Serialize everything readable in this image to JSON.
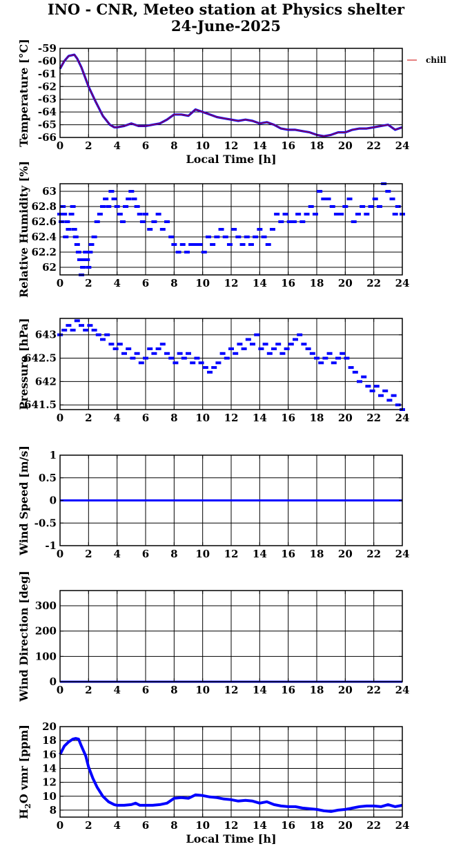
{
  "header": {
    "title_line1": "INO - CNR, Meteo station at Physics shelter",
    "title_line2": "24-June-2025"
  },
  "colors": {
    "series": "#0000ff",
    "legend_line": "#cc0000",
    "grid": "#000000"
  },
  "chart_data": [
    {
      "type": "line",
      "ylabel": "Temperature [°C]",
      "xlabel": "Local Time [h]",
      "xlim": [
        0,
        24
      ],
      "xticks": [
        0,
        2,
        4,
        6,
        8,
        10,
        12,
        14,
        16,
        18,
        20,
        22,
        24
      ],
      "ylim": [
        -66,
        -59
      ],
      "yticks": [
        -66,
        -65,
        -64,
        -63,
        -62,
        -61,
        -60,
        -59
      ],
      "grid": true,
      "legend": {
        "label": "chill",
        "placement": "right"
      },
      "series": [
        {
          "name": "chill",
          "x": [
            0,
            0.3,
            0.6,
            1.0,
            1.2,
            1.5,
            2.0,
            2.5,
            3.0,
            3.5,
            3.8,
            4.0,
            4.5,
            5.0,
            5.5,
            6.0,
            6.5,
            7.0,
            7.5,
            8.0,
            8.5,
            9.0,
            9.5,
            10.0,
            10.5,
            11.0,
            11.5,
            12.0,
            12.5,
            13.0,
            13.5,
            14.0,
            14.5,
            15.0,
            15.5,
            16.0,
            16.5,
            17.0,
            17.5,
            18.0,
            18.5,
            19.0,
            19.5,
            20.0,
            20.5,
            21.0,
            21.5,
            22.0,
            22.5,
            23.0,
            23.5,
            24.0
          ],
          "y": [
            -60.6,
            -60.0,
            -59.6,
            -59.5,
            -59.8,
            -60.5,
            -62.0,
            -63.2,
            -64.3,
            -65.0,
            -65.2,
            -65.2,
            -65.1,
            -64.9,
            -65.1,
            -65.1,
            -65.0,
            -64.9,
            -64.6,
            -64.2,
            -64.2,
            -64.3,
            -63.8,
            -64.0,
            -64.2,
            -64.4,
            -64.5,
            -64.6,
            -64.7,
            -64.6,
            -64.7,
            -64.9,
            -64.8,
            -65.0,
            -65.3,
            -65.4,
            -65.4,
            -65.5,
            -65.6,
            -65.8,
            -65.9,
            -65.8,
            -65.6,
            -65.6,
            -65.4,
            -65.3,
            -65.3,
            -65.2,
            -65.1,
            -65.0,
            -65.4,
            -65.2
          ]
        }
      ]
    },
    {
      "type": "scatter",
      "ylabel": "Relative Humidity [%]",
      "xlim": [
        0,
        24
      ],
      "xticks": [
        0,
        2,
        4,
        6,
        8,
        10,
        12,
        14,
        16,
        18,
        20,
        22,
        24
      ],
      "ylim": [
        61.9,
        63.1
      ],
      "yticks": [
        62,
        62.2,
        62.4,
        62.6,
        62.8,
        63
      ],
      "grid": true,
      "series": [
        {
          "x": [
            0.0,
            0.1,
            0.2,
            0.3,
            0.4,
            0.5,
            0.6,
            0.8,
            0.9,
            1.0,
            1.1,
            1.2,
            1.3,
            1.4,
            1.5,
            1.6,
            1.7,
            1.8,
            1.9,
            2.0,
            2.1,
            2.2,
            2.4,
            2.6,
            2.8,
            3.0,
            3.2,
            3.4,
            3.6,
            3.8,
            4.0,
            4.2,
            4.4,
            4.6,
            4.8,
            5.0,
            5.2,
            5.4,
            5.6,
            5.8,
            6.0,
            6.3,
            6.6,
            6.9,
            7.2,
            7.5,
            7.8,
            8.0,
            8.3,
            8.6,
            8.9,
            9.2,
            9.5,
            9.8,
            10.1,
            10.4,
            10.7,
            11.0,
            11.3,
            11.6,
            11.9,
            12.2,
            12.5,
            12.8,
            13.1,
            13.4,
            13.7,
            14.0,
            14.3,
            14.6,
            14.9,
            15.2,
            15.5,
            15.8,
            16.1,
            16.4,
            16.7,
            17.0,
            17.3,
            17.6,
            17.9,
            18.2,
            18.5,
            18.8,
            19.1,
            19.4,
            19.7,
            20.0,
            20.3,
            20.6,
            20.9,
            21.2,
            21.5,
            21.8,
            22.1,
            22.4,
            22.7,
            23.0,
            23.3,
            23.5,
            23.7,
            24.0
          ],
          "y": [
            62.7,
            62.6,
            62.8,
            62.7,
            62.4,
            62.6,
            62.5,
            62.7,
            62.8,
            62.5,
            62.4,
            62.3,
            62.2,
            62.1,
            61.9,
            62.0,
            62.1,
            62.2,
            62.1,
            62.0,
            62.2,
            62.3,
            62.4,
            62.6,
            62.7,
            62.8,
            62.9,
            62.8,
            63.0,
            62.9,
            62.8,
            62.7,
            62.6,
            62.8,
            62.9,
            63.0,
            62.9,
            62.8,
            62.7,
            62.6,
            62.7,
            62.5,
            62.6,
            62.7,
            62.5,
            62.6,
            62.4,
            62.3,
            62.2,
            62.3,
            62.2,
            62.3,
            62.3,
            62.3,
            62.2,
            62.4,
            62.3,
            62.4,
            62.5,
            62.4,
            62.3,
            62.5,
            62.4,
            62.3,
            62.4,
            62.3,
            62.4,
            62.5,
            62.4,
            62.3,
            62.5,
            62.7,
            62.6,
            62.7,
            62.6,
            62.6,
            62.7,
            62.6,
            62.7,
            62.8,
            62.7,
            63.0,
            62.9,
            62.9,
            62.8,
            62.7,
            62.7,
            62.8,
            62.9,
            62.6,
            62.7,
            62.8,
            62.7,
            62.8,
            62.9,
            62.8,
            63.1,
            63.0,
            62.9,
            62.7,
            62.8,
            62.7
          ]
        }
      ]
    },
    {
      "type": "scatter",
      "ylabel": "Pressure [hPa]",
      "xlim": [
        0,
        24
      ],
      "xticks": [
        0,
        2,
        4,
        6,
        8,
        10,
        12,
        14,
        16,
        18,
        20,
        22,
        24
      ],
      "ylim": [
        641.4,
        643.35
      ],
      "yticks": [
        641.5,
        642,
        642.5,
        643
      ],
      "grid": true,
      "series": [
        {
          "x": [
            0.0,
            0.3,
            0.6,
            0.9,
            1.2,
            1.5,
            1.8,
            2.1,
            2.4,
            2.7,
            3.0,
            3.3,
            3.6,
            3.9,
            4.2,
            4.5,
            4.8,
            5.1,
            5.4,
            5.7,
            6.0,
            6.3,
            6.6,
            6.9,
            7.2,
            7.5,
            7.8,
            8.1,
            8.4,
            8.7,
            9.0,
            9.3,
            9.6,
            9.9,
            10.2,
            10.5,
            10.8,
            11.1,
            11.4,
            11.7,
            12.0,
            12.3,
            12.6,
            12.9,
            13.2,
            13.5,
            13.8,
            14.1,
            14.4,
            14.7,
            15.0,
            15.3,
            15.6,
            15.9,
            16.2,
            16.5,
            16.8,
            17.1,
            17.4,
            17.7,
            18.0,
            18.3,
            18.6,
            18.9,
            19.2,
            19.5,
            19.8,
            20.1,
            20.4,
            20.7,
            21.0,
            21.3,
            21.6,
            21.9,
            22.2,
            22.5,
            22.8,
            23.1,
            23.4,
            23.7,
            24.0
          ],
          "y": [
            643.0,
            643.1,
            643.2,
            643.1,
            643.3,
            643.2,
            643.1,
            643.2,
            643.1,
            643.0,
            642.9,
            643.0,
            642.8,
            642.7,
            642.8,
            642.6,
            642.7,
            642.5,
            642.6,
            642.4,
            642.5,
            642.7,
            642.6,
            642.7,
            642.8,
            642.6,
            642.5,
            642.4,
            642.6,
            642.5,
            642.6,
            642.4,
            642.5,
            642.4,
            642.3,
            642.2,
            642.3,
            642.4,
            642.6,
            642.5,
            642.7,
            642.6,
            642.8,
            642.7,
            642.9,
            642.8,
            643.0,
            642.7,
            642.8,
            642.6,
            642.7,
            642.8,
            642.6,
            642.7,
            642.8,
            642.9,
            643.0,
            642.8,
            642.7,
            642.6,
            642.5,
            642.4,
            642.5,
            642.6,
            642.4,
            642.5,
            642.6,
            642.5,
            642.3,
            642.2,
            642.0,
            642.1,
            641.9,
            641.8,
            641.9,
            641.7,
            641.8,
            641.6,
            641.7,
            641.5,
            641.4
          ]
        }
      ]
    },
    {
      "type": "line",
      "ylabel": "Wind Speed [m/s]",
      "xlim": [
        0,
        24
      ],
      "xticks": [
        0,
        2,
        4,
        6,
        8,
        10,
        12,
        14,
        16,
        18,
        20,
        22,
        24
      ],
      "ylim": [
        -1,
        1
      ],
      "yticks": [
        -1,
        -0.5,
        0,
        0.5,
        1
      ],
      "grid": true,
      "series": [
        {
          "x": [
            0,
            24
          ],
          "y": [
            0,
            0
          ]
        }
      ]
    },
    {
      "type": "line",
      "ylabel": "Wind Direction [deg]",
      "xlim": [
        0,
        24
      ],
      "xticks": [
        0,
        2,
        4,
        6,
        8,
        10,
        12,
        14,
        16,
        18,
        20,
        22,
        24
      ],
      "ylim": [
        0,
        360
      ],
      "yticks": [
        0,
        100,
        200,
        300
      ],
      "grid": true,
      "series": [
        {
          "x": [
            0,
            24
          ],
          "y": [
            0,
            0
          ]
        }
      ]
    },
    {
      "type": "line",
      "ylabel": "H2O vmr [ppm]",
      "xlabel": "Local Time [h]",
      "xlim": [
        0,
        24
      ],
      "xticks": [
        0,
        2,
        4,
        6,
        8,
        10,
        12,
        14,
        16,
        18,
        20,
        22,
        24
      ],
      "ylim": [
        7,
        20
      ],
      "yticks": [
        8,
        10,
        12,
        14,
        16,
        18,
        20
      ],
      "grid": true,
      "series": [
        {
          "x": [
            0,
            0.3,
            0.6,
            0.9,
            1.1,
            1.3,
            1.5,
            1.8,
            2.0,
            2.3,
            2.6,
            3.0,
            3.4,
            3.8,
            4.0,
            4.5,
            5.0,
            5.3,
            5.6,
            6.0,
            6.5,
            7.0,
            7.5,
            8.0,
            8.5,
            9.0,
            9.5,
            10.0,
            10.5,
            11.0,
            11.5,
            12.0,
            12.5,
            13.0,
            13.5,
            14.0,
            14.5,
            15.0,
            15.5,
            16.0,
            16.5,
            17.0,
            17.5,
            18.0,
            18.5,
            19.0,
            19.5,
            20.0,
            20.5,
            21.0,
            21.5,
            22.0,
            22.5,
            23.0,
            23.5,
            24.0
          ],
          "y": [
            16.0,
            17.2,
            17.8,
            18.2,
            18.3,
            18.2,
            17.2,
            15.8,
            14.2,
            12.6,
            11.3,
            10.0,
            9.2,
            8.8,
            8.7,
            8.7,
            8.8,
            9.0,
            8.7,
            8.7,
            8.7,
            8.8,
            9.0,
            9.7,
            9.8,
            9.7,
            10.2,
            10.1,
            9.9,
            9.8,
            9.6,
            9.5,
            9.3,
            9.4,
            9.3,
            9.0,
            9.2,
            8.8,
            8.6,
            8.5,
            8.5,
            8.3,
            8.2,
            8.1,
            7.9,
            7.8,
            8.0,
            8.1,
            8.3,
            8.5,
            8.6,
            8.6,
            8.5,
            8.8,
            8.5,
            8.7
          ]
        }
      ]
    }
  ]
}
